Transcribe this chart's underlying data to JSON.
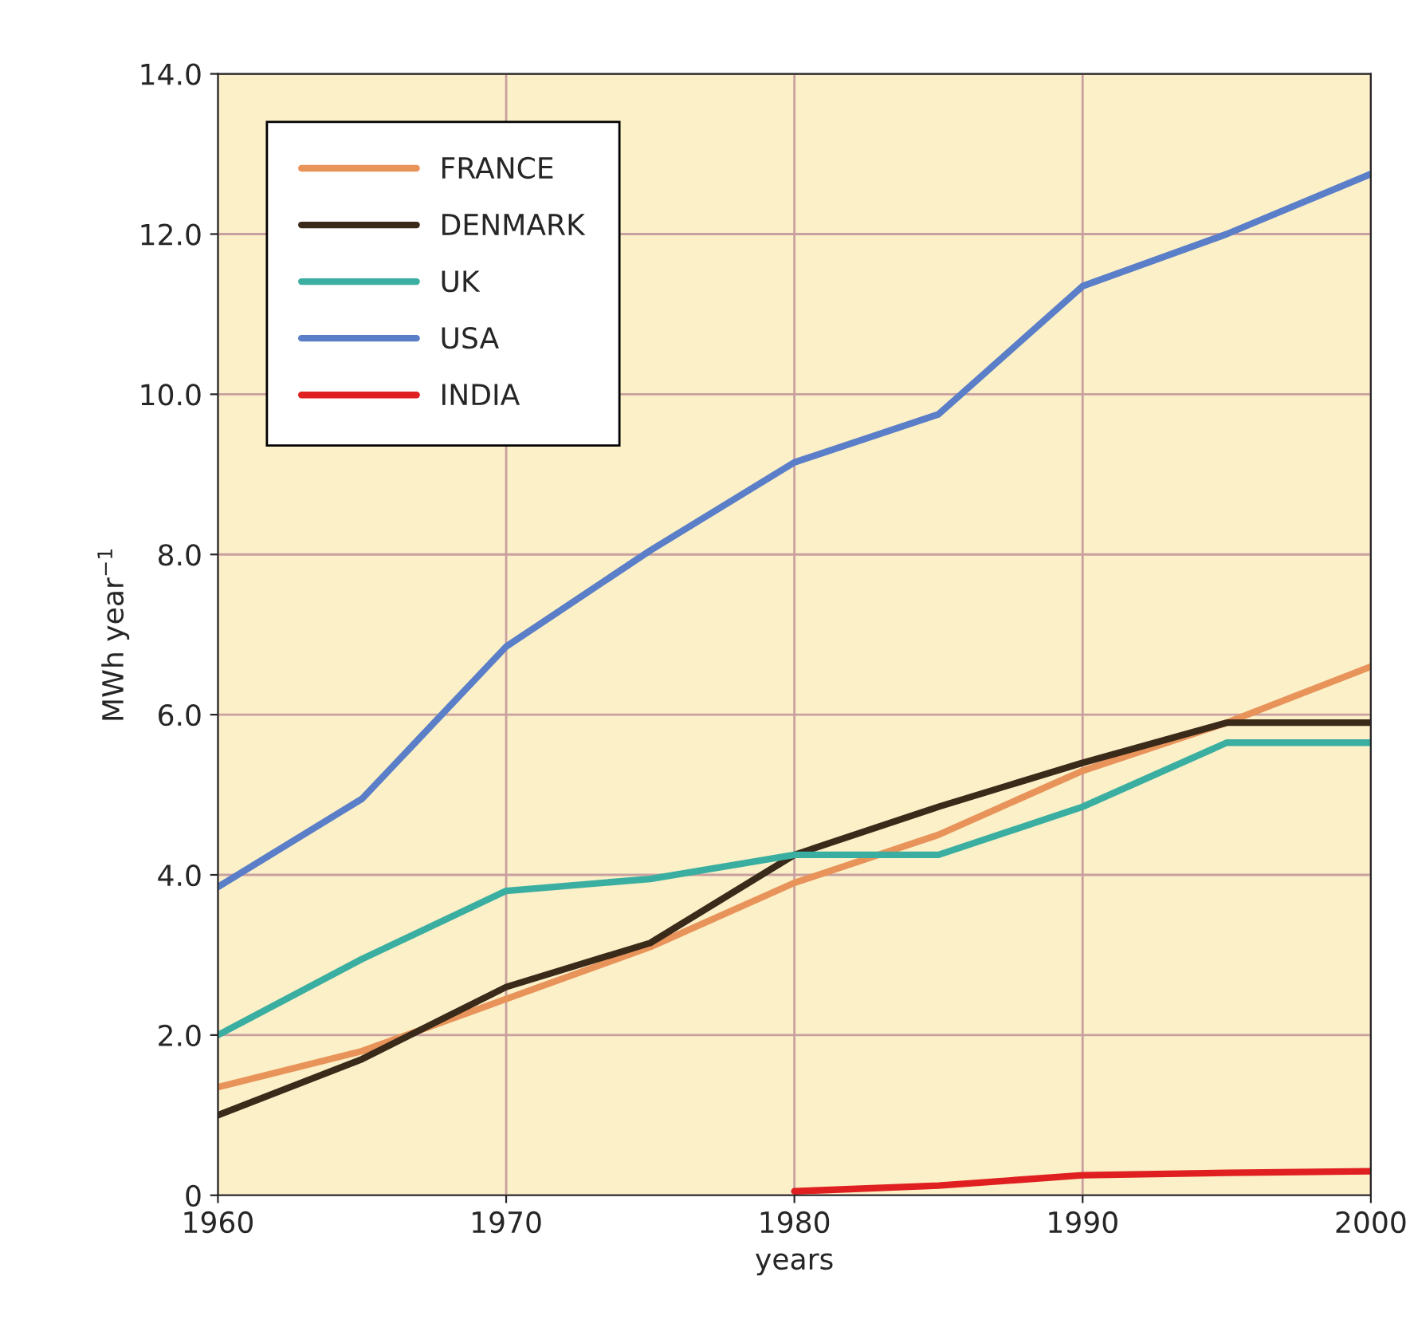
{
  "chart_data": {
    "type": "line",
    "xlabel": "years",
    "ylabel": "MWh year$^{−1}$",
    "x": [
      1960,
      1965,
      1970,
      1975,
      1980,
      1985,
      1990,
      1995,
      2000
    ],
    "series": [
      {
        "name": "FRANCE",
        "color": "#e8935a",
        "values": [
          1.35,
          1.8,
          2.45,
          3.1,
          3.9,
          4.5,
          5.3,
          5.9,
          6.6
        ]
      },
      {
        "name": "DENMARK",
        "color": "#3a2a1a",
        "values": [
          1.0,
          1.7,
          2.6,
          3.15,
          4.25,
          4.85,
          5.4,
          5.9,
          5.9
        ]
      },
      {
        "name": "UK",
        "color": "#3aaea0",
        "values": [
          2.0,
          2.95,
          3.8,
          3.95,
          4.25,
          4.25,
          4.85,
          5.65,
          5.65
        ]
      },
      {
        "name": "USA",
        "color": "#5a7ec8",
        "values": [
          3.85,
          4.95,
          6.85,
          8.05,
          9.15,
          9.75,
          11.35,
          12.0,
          12.75
        ]
      },
      {
        "name": "INDIA",
        "color": "#e02020",
        "values": [
          null,
          null,
          null,
          null,
          0.05,
          0.12,
          0.25,
          0.28,
          0.3
        ]
      }
    ],
    "xlim": [
      1960,
      2000
    ],
    "xticks": [
      1960,
      1970,
      1980,
      1990,
      2000
    ],
    "ylim": [
      0,
      14
    ],
    "yticks": [
      0,
      {
        "value": 2,
        "label": "2.0"
      },
      {
        "value": 4,
        "label": "4.0"
      },
      {
        "value": 6,
        "label": "6.0"
      },
      {
        "value": 8,
        "label": "8.0"
      },
      {
        "value": 10,
        "label": "10.0"
      },
      {
        "value": 12,
        "label": "12.0"
      },
      {
        "value": 14,
        "label": "14.0"
      }
    ],
    "grid": true,
    "legend": "top left",
    "line_style": "solid",
    "marker": "none"
  }
}
